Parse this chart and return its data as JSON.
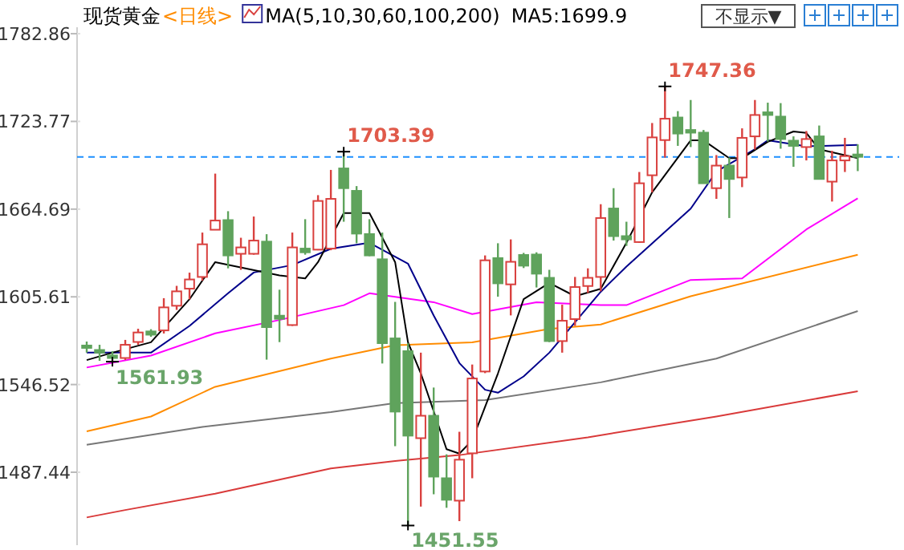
{
  "chart_data": {
    "type": "candlestick",
    "title": "现货黄金",
    "subtitle": "<日线>",
    "legend_title": "MA(5,10,30,60,100,200)",
    "categories": [
      null,
      null,
      null,
      null,
      null,
      null,
      null,
      null,
      null,
      null,
      null,
      null,
      null,
      null,
      null,
      null,
      null,
      null,
      null,
      null,
      null,
      null,
      null,
      null,
      null,
      null,
      null,
      null,
      null,
      null,
      null,
      null,
      null,
      null,
      null,
      null,
      null,
      null,
      null,
      null,
      null,
      null,
      null,
      null,
      null,
      null,
      null,
      null,
      null,
      null,
      null,
      null,
      null,
      null,
      null,
      null,
      null,
      null,
      null,
      null,
      null
    ],
    "ohlc": [
      [
        1572.8,
        1575.5,
        1568.0,
        1571.2
      ],
      [
        1569.8,
        1573.3,
        1562.5,
        1568.0
      ],
      [
        1566.1,
        1569.0,
        1561.93,
        1564.4
      ],
      [
        1564.4,
        1576.6,
        1563.0,
        1573.3
      ],
      [
        1575.2,
        1584.1,
        1573.3,
        1581.6
      ],
      [
        1582.3,
        1583.8,
        1578.7,
        1580.1
      ],
      [
        1583.0,
        1604.7,
        1580.9,
        1598.5
      ],
      [
        1599.6,
        1613.0,
        1596.8,
        1609.3
      ],
      [
        1611.1,
        1621.9,
        1603.9,
        1617.3
      ],
      [
        1619.0,
        1648.9,
        1616.5,
        1641.0
      ],
      [
        1650.8,
        1688.6,
        1650.8,
        1657.0
      ],
      [
        1657.3,
        1663.3,
        1624.8,
        1633.5
      ],
      [
        1634.6,
        1645.4,
        1623.8,
        1638.9
      ],
      [
        1634.6,
        1659.7,
        1634.0,
        1643.5
      ],
      [
        1642.8,
        1647.8,
        1563.3,
        1585.2
      ],
      [
        1592.9,
        1610.4,
        1575.1,
        1590.8
      ],
      [
        1586.6,
        1648.9,
        1586.0,
        1638.9
      ],
      [
        1638.1,
        1657.9,
        1634.0,
        1635.6
      ],
      [
        1637.4,
        1674.1,
        1637.0,
        1670.2
      ],
      [
        1638.1,
        1691.1,
        1637.0,
        1671.6
      ],
      [
        1692.1,
        1703.39,
        1656.2,
        1678.8
      ],
      [
        1677.0,
        1680.2,
        1641.7,
        1648.2
      ],
      [
        1647.9,
        1657.9,
        1633.0,
        1633.5
      ],
      [
        1630.9,
        1648.9,
        1560.7,
        1574.4
      ],
      [
        1577.6,
        1602.2,
        1505.0,
        1528.3
      ],
      [
        1569.0,
        1574.4,
        1451.55,
        1512.1
      ],
      [
        1510.4,
        1568.0,
        1464.3,
        1525.5
      ],
      [
        1525.5,
        1544.5,
        1472.6,
        1484.5
      ],
      [
        1483.4,
        1499.5,
        1463.5,
        1468.9
      ],
      [
        1468.3,
        1514.7,
        1454.5,
        1495.9
      ],
      [
        1500.2,
        1560.0,
        1483.4,
        1550.6
      ],
      [
        1555.3,
        1633.5,
        1554.2,
        1630.2
      ],
      [
        1631.7,
        1641.7,
        1605.7,
        1614.7
      ],
      [
        1614.0,
        1644.3,
        1593.1,
        1629.2
      ],
      [
        1633.8,
        1635.2,
        1625.0,
        1626.6
      ],
      [
        1634.1,
        1635.6,
        1611.9,
        1621.2
      ],
      [
        1618.4,
        1623.8,
        1575.1,
        1575.8
      ],
      [
        1575.8,
        1600.3,
        1568.0,
        1589.5
      ],
      [
        1590.6,
        1619.0,
        1586.0,
        1612.2
      ],
      [
        1612.9,
        1624.8,
        1608.2,
        1618.4
      ],
      [
        1619.0,
        1668.0,
        1609.3,
        1658.7
      ],
      [
        1665.1,
        1678.8,
        1643.5,
        1646.5
      ],
      [
        1646.5,
        1656.2,
        1639.9,
        1644.3
      ],
      [
        1642.5,
        1689.7,
        1642.0,
        1682.1
      ],
      [
        1687.5,
        1722.7,
        1676.0,
        1713.0
      ],
      [
        1711.2,
        1747.36,
        1699.4,
        1725.6
      ],
      [
        1726.4,
        1730.7,
        1707.3,
        1715.6
      ],
      [
        1718.0,
        1738.2,
        1706.5,
        1716.2
      ],
      [
        1716.2,
        1718.0,
        1682.0,
        1682.1
      ],
      [
        1678.8,
        1701.1,
        1671.6,
        1694.0
      ],
      [
        1694.0,
        1699.4,
        1658.7,
        1685.0
      ],
      [
        1686.0,
        1719.1,
        1679.5,
        1712.7
      ],
      [
        1713.7,
        1738.2,
        1704.8,
        1728.1
      ],
      [
        1729.9,
        1736.4,
        1710.2,
        1728.1
      ],
      [
        1727.0,
        1736.1,
        1705.4,
        1711.9
      ],
      [
        1710.8,
        1713.7,
        1693.2,
        1707.3
      ],
      [
        1706.5,
        1717.3,
        1697.5,
        1711.9
      ],
      [
        1713.7,
        1721.0,
        1685.0,
        1685.0
      ],
      [
        1683.2,
        1704.0,
        1669.8,
        1697.5
      ],
      [
        1697.5,
        1712.7,
        1689.7,
        1700.4
      ],
      [
        1701.5,
        1708.3,
        1690.3,
        1699.9
      ]
    ],
    "colors": [
      "#5fa35c",
      "#5fa35c",
      "#5fa35c",
      "#d9413f",
      "#d9413f",
      "#5fa35c",
      "#d9413f",
      "#d9413f",
      "#d9413f",
      "#d9413f",
      "#d9413f",
      "#5fa35c",
      "#d9413f",
      "#d9413f",
      "#5fa35c",
      "#5fa35c",
      "#d9413f",
      "#5fa35c",
      "#d9413f",
      "#d9413f",
      "#5fa35c",
      "#5fa35c",
      "#5fa35c",
      "#5fa35c",
      "#5fa35c",
      "#5fa35c",
      "#d9413f",
      "#5fa35c",
      "#5fa35c",
      "#d9413f",
      "#d9413f",
      "#d9413f",
      "#5fa35c",
      "#d9413f",
      "#5fa35c",
      "#5fa35c",
      "#5fa35c",
      "#d9413f",
      "#d9413f",
      "#d9413f",
      "#d9413f",
      "#5fa35c",
      "#5fa35c",
      "#d9413f",
      "#d9413f",
      "#d9413f",
      "#5fa35c",
      "#5fa35c",
      "#5fa35c",
      "#d9413f",
      "#5fa35c",
      "#d9413f",
      "#d9413f",
      "#5fa35c",
      "#5fa35c",
      "#5fa35c",
      "#d9413f",
      "#5fa35c",
      "#d9413f",
      "#d9413f",
      "#5fa35c"
    ],
    "series": [
      {
        "type": "line",
        "color": "#d93a3a",
        "values": [
          1457,
          null,
          null,
          1462,
          null,
          null,
          null,
          null,
          null,
          null,
          1473,
          null,
          null,
          null,
          null,
          null,
          null,
          null,
          null,
          1490,
          null,
          null,
          null,
          null,
          1495,
          null,
          null,
          null,
          null,
          1499,
          null,
          null,
          null,
          null,
          null,
          null,
          null,
          null,
          null,
          1511,
          null,
          null,
          null,
          null,
          null,
          null,
          null,
          null,
          null,
          1525,
          null,
          null,
          null,
          null,
          null,
          null,
          null,
          null,
          null,
          null,
          1542
        ]
      },
      {
        "type": "line",
        "color": "#777777",
        "values": [
          1506,
          null,
          null,
          null,
          null,
          null,
          null,
          null,
          null,
          1518,
          null,
          null,
          null,
          null,
          null,
          null,
          null,
          null,
          null,
          1528,
          null,
          null,
          null,
          null,
          1534,
          null,
          null,
          null,
          null,
          null,
          null,
          1536,
          null,
          null,
          null,
          null,
          null,
          null,
          null,
          null,
          1548,
          null,
          null,
          null,
          null,
          null,
          null,
          null,
          null,
          1564,
          null,
          null,
          null,
          null,
          null,
          null,
          null,
          null,
          null,
          null,
          1596
        ]
      },
      {
        "type": "line",
        "color": "#ff8c00",
        "values": [
          1515,
          null,
          null,
          null,
          null,
          1525,
          null,
          null,
          null,
          null,
          1545,
          null,
          null,
          null,
          null,
          null,
          null,
          null,
          null,
          1564,
          null,
          null,
          null,
          null,
          1573,
          null,
          null,
          null,
          null,
          null,
          1575,
          null,
          null,
          null,
          null,
          null,
          1584,
          null,
          null,
          null,
          1587,
          null,
          null,
          null,
          null,
          null,
          null,
          1606,
          null,
          null,
          null,
          null,
          null,
          null,
          null,
          null,
          null,
          null,
          null,
          null,
          1634
        ]
      },
      {
        "type": "line",
        "color": "#ff00ff",
        "values": [
          1558,
          null,
          null,
          null,
          null,
          1566,
          null,
          null,
          null,
          null,
          1581,
          null,
          null,
          null,
          null,
          1590,
          null,
          null,
          null,
          null,
          1600,
          null,
          1608,
          null,
          null,
          null,
          null,
          1602,
          null,
          null,
          1594,
          null,
          null,
          null,
          null,
          1602,
          null,
          null,
          null,
          null,
          1600,
          null,
          1600,
          null,
          null,
          null,
          null,
          1617,
          null,
          null,
          null,
          1618,
          null,
          null,
          null,
          null,
          1651,
          null,
          null,
          null,
          1672
        ]
      },
      {
        "type": "line",
        "color": "#00008b",
        "values": [
          1568,
          null,
          null,
          null,
          null,
          1568,
          null,
          null,
          1586,
          null,
          null,
          1608,
          null,
          1622,
          null,
          null,
          1627,
          null,
          null,
          1638,
          null,
          null,
          1642,
          null,
          null,
          1628,
          null,
          1593,
          null,
          1561,
          null,
          1543,
          1541,
          null,
          1552,
          null,
          1568,
          null,
          null,
          null,
          1609,
          null,
          1626,
          null,
          null,
          null,
          null,
          1665,
          null,
          1690,
          null,
          null,
          1705,
          1711,
          null,
          null,
          1707,
          null,
          null,
          null,
          1708
        ]
      },
      {
        "type": "line",
        "name": "MA5:1699.9",
        "color": "#000000",
        "values": [
          1563,
          null,
          1568,
          null,
          null,
          1575,
          null,
          null,
          1604,
          null,
          1629,
          null,
          null,
          null,
          null,
          1620,
          null,
          1618,
          1629,
          null,
          1662,
          null,
          1662,
          null,
          1629,
          1575,
          1554,
          null,
          1503,
          1500,
          1509,
          null,
          1554,
          null,
          1604,
          null,
          1615,
          null,
          1606,
          null,
          1611,
          null,
          1642,
          null,
          1676,
          null,
          null,
          1711,
          1711,
          null,
          1699,
          1699,
          null,
          1710,
          null,
          1717,
          1716,
          1705,
          null,
          null,
          1699
        ]
      }
    ],
    "ylim": [
      1438.3,
      1787.2
    ],
    "yticks": [
      1487.44,
      1546.52,
      1605.61,
      1664.69,
      1723.77,
      1782.86
    ],
    "tick_labels": "y",
    "ref_lines": [
      {
        "axis": "y",
        "value": 1699.9,
        "color": "#1e90ff",
        "line_style": "dashed"
      }
    ],
    "annotations": [
      {
        "text": "1703.39",
        "y": 1703.39
      },
      "1747.36",
      {
        "text": "1561.93",
        "y": 1561.93
      },
      {
        "text": "1451.55",
        "y": 1451.55
      },
      "不显示▼"
    ]
  }
}
